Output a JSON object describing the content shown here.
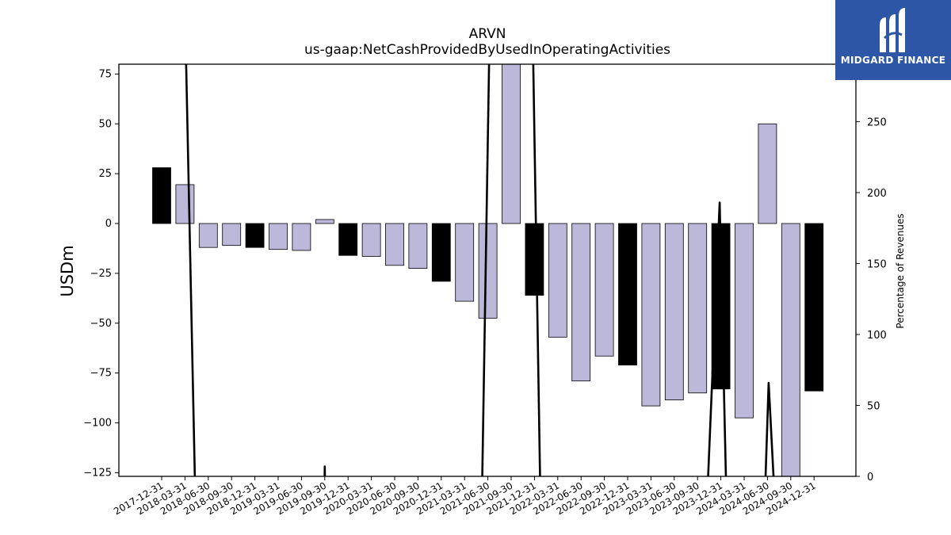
{
  "brand": {
    "name": "MIDGARD FINANCE",
    "color": "#2d57a6",
    "logo_icon": "midgard-m-logo-icon"
  },
  "chart_data": {
    "type": "bar",
    "title": "ARVN",
    "subtitle": "us-gaap:NetCashProvidedByUsedInOperatingActivities",
    "ylabel": "USDm",
    "y2label": "Percentage of Revenues",
    "ylim": [
      -127,
      80
    ],
    "y2lim": [
      0,
      290
    ],
    "yticks": [
      75,
      50,
      25,
      0,
      -25,
      -50,
      -75,
      -100,
      -125
    ],
    "y2ticks": [
      0,
      50,
      100,
      150,
      200,
      250
    ],
    "categories": [
      "2017-12-31",
      "2018-03-31",
      "2018-06-30",
      "2018-09-30",
      "2018-12-31",
      "2019-03-31",
      "2019-06-30",
      "2019-09-30",
      "2019-12-31",
      "2020-03-31",
      "2020-06-30",
      "2020-09-30",
      "2020-12-31",
      "2021-03-31",
      "2021-06-30",
      "2021-09-30",
      "2021-12-31",
      "2022-03-31",
      "2022-06-30",
      "2022-09-30",
      "2022-12-31",
      "2023-03-31",
      "2023-06-30",
      "2023-09-30",
      "2023-12-31",
      "2024-03-31",
      "2024-06-30",
      "2024-09-30",
      "2024-12-31"
    ],
    "series": [
      {
        "type": "bar",
        "values": [
          28,
          19.5,
          -12,
          -11,
          -12,
          -13,
          -13.5,
          2,
          -16,
          -16.5,
          -21,
          -22.5,
          -29,
          -39,
          -47.5,
          81,
          -36,
          -57,
          -79,
          -66.5,
          -71,
          -91.5,
          -88.5,
          -85,
          -83,
          -97.5,
          50,
          -127,
          -84
        ],
        "annual_flags": [
          1,
          0,
          0,
          0,
          1,
          0,
          0,
          0,
          1,
          0,
          0,
          0,
          1,
          0,
          0,
          0,
          1,
          0,
          0,
          0,
          1,
          0,
          0,
          0,
          1,
          0,
          0,
          0,
          1
        ],
        "colors": {
          "annual": "#000000",
          "quarterly": "#bcb8da"
        }
      },
      {
        "type": "line",
        "axis": "y2",
        "color": "#000000",
        "points": [
          [
            -1.5,
            400
          ],
          [
            1.05,
            290
          ],
          [
            1.5,
            -60
          ],
          [
            6.95,
            -60
          ],
          [
            7.0,
            7
          ],
          [
            7.05,
            -60
          ],
          [
            13.7,
            -60
          ],
          [
            14.05,
            290
          ],
          [
            14.5,
            500
          ],
          [
            15.5,
            500
          ],
          [
            15.95,
            290
          ],
          [
            16.3,
            -60
          ],
          [
            23.3,
            -60
          ],
          [
            23.95,
            193
          ],
          [
            24.3,
            -60
          ],
          [
            25.8,
            -60
          ],
          [
            26.05,
            66
          ],
          [
            26.45,
            -60
          ]
        ]
      }
    ]
  }
}
